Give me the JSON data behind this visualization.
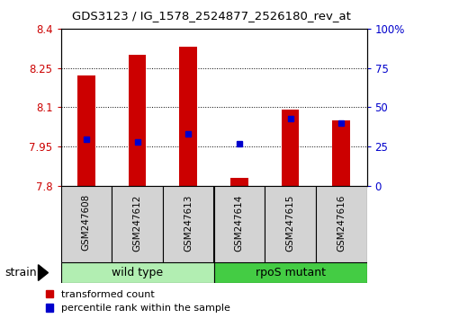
{
  "title": "GDS3123 / IG_1578_2524877_2526180_rev_at",
  "samples": [
    "GSM247608",
    "GSM247612",
    "GSM247613",
    "GSM247614",
    "GSM247615",
    "GSM247616"
  ],
  "red_values": [
    8.22,
    8.3,
    8.33,
    7.83,
    8.09,
    8.05
  ],
  "blue_values": [
    30,
    28,
    33,
    27,
    43,
    40
  ],
  "y_min": 7.8,
  "y_max": 8.4,
  "y_ticks": [
    7.8,
    7.95,
    8.1,
    8.25,
    8.4
  ],
  "y_tick_labels": [
    "7.8",
    "7.95",
    "8.1",
    "8.25",
    "8.4"
  ],
  "y2_ticks": [
    0,
    25,
    50,
    75,
    100
  ],
  "y2_tick_labels": [
    "0",
    "25",
    "50",
    "75",
    "100%"
  ],
  "red_color": "#CC0000",
  "blue_color": "#0000CC",
  "bar_base": 7.8,
  "strain_label": "strain",
  "legend_red": "transformed count",
  "legend_blue": "percentile rank within the sample",
  "group_label_wt": "wild type",
  "group_label_rpos": "rpoS mutant",
  "wt_color": "#B2EEB2",
  "rpos_color": "#44CC44",
  "label_bg": "#D3D3D3",
  "bar_width": 0.35
}
